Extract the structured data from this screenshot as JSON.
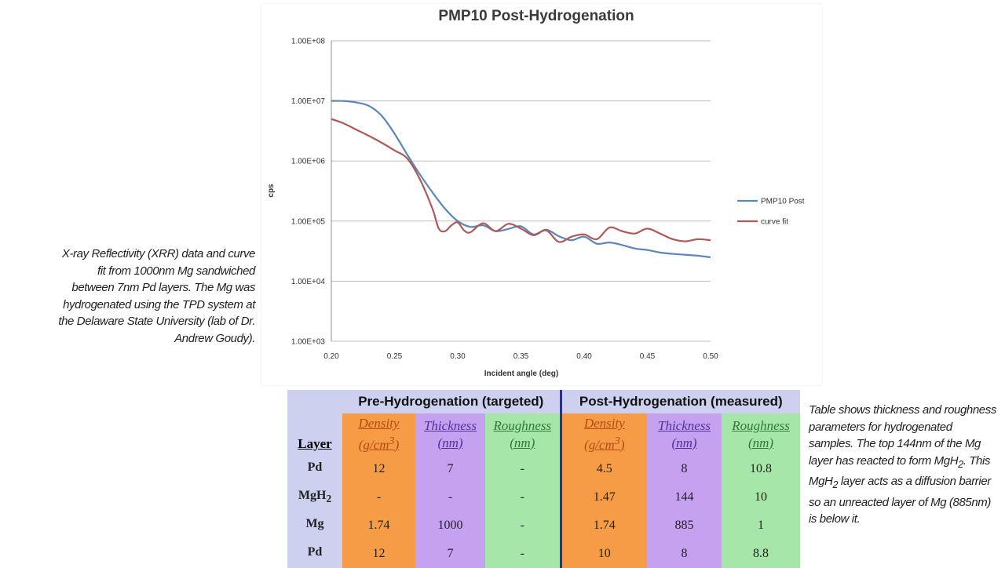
{
  "chart_data": {
    "type": "line",
    "title": "PMP10 Post-Hydrogenation",
    "xlabel": "Incident angle (deg)",
    "ylabel": "cps",
    "xlim": [
      0.2,
      0.5
    ],
    "ylim": [
      1000,
      100000000
    ],
    "yscale": "log",
    "xticks": [
      "0.20",
      "0.25",
      "0.30",
      "0.35",
      "0.40",
      "0.45",
      "0.50"
    ],
    "yticks": [
      "1.00E+08",
      "1.00E+07",
      "1.00E+06",
      "1.00E+05",
      "1.00E+04",
      "1.00E+03"
    ],
    "grid": "horizontal",
    "legend_position": "right",
    "series": [
      {
        "name": "PMP10 Post",
        "color": "#5b86b8",
        "x": [
          0.2,
          0.21,
          0.22,
          0.23,
          0.24,
          0.25,
          0.26,
          0.27,
          0.28,
          0.29,
          0.3,
          0.31,
          0.32,
          0.33,
          0.34,
          0.35,
          0.36,
          0.37,
          0.38,
          0.39,
          0.4,
          0.41,
          0.42,
          0.43,
          0.44,
          0.45,
          0.46,
          0.47,
          0.48,
          0.49,
          0.5
        ],
        "y": [
          10000000,
          9950000,
          9400000,
          8200000,
          5600000,
          2850000,
          1280000,
          600000,
          300000,
          160000,
          100000,
          80000,
          85000,
          68000,
          74000,
          82000,
          60000,
          72000,
          56000,
          48000,
          55000,
          42000,
          44000,
          40000,
          35000,
          33000,
          30000,
          28500,
          27500,
          26500,
          25000
        ]
      },
      {
        "name": "curve fit",
        "color": "#b05a57",
        "x": [
          0.2,
          0.21,
          0.22,
          0.23,
          0.24,
          0.25,
          0.26,
          0.27,
          0.28,
          0.285,
          0.29,
          0.295,
          0.3,
          0.305,
          0.31,
          0.32,
          0.33,
          0.34,
          0.35,
          0.36,
          0.37,
          0.38,
          0.39,
          0.4,
          0.41,
          0.42,
          0.43,
          0.44,
          0.45,
          0.46,
          0.47,
          0.48,
          0.49,
          0.5
        ],
        "y": [
          5000000,
          4200000,
          3300000,
          2600000,
          2000000,
          1500000,
          1100000,
          500000,
          160000,
          75000,
          68000,
          85000,
          95000,
          70000,
          65000,
          92000,
          68000,
          90000,
          75000,
          58000,
          70000,
          45000,
          55000,
          60000,
          50000,
          78000,
          68000,
          62000,
          75000,
          62000,
          50000,
          46000,
          50000,
          48000
        ]
      }
    ]
  },
  "captions": {
    "left": "X-ray Reflectivity (XRR) data and curve fit from 1000nm Mg sandwiched between 7nm Pd layers.  The Mg was hydrogenated using the TPD system at the Delaware State University (lab of Dr. Andrew Goudy).",
    "right": {
      "part1": "Table shows thickness and roughness parameters for hydrogenated samples.  The top 144nm of the Mg layer has reacted to form MgH",
      "sub1": "2",
      "part2": ".  This MgH",
      "sub2": "2",
      "part3": " layer acts as a diffusion barrier so an unreacted layer of Mg (885nm) is below it."
    }
  },
  "table": {
    "group_pre": "Pre-Hydrogenation (targeted)",
    "group_post": "Post-Hydrogenation (measured)",
    "layer_header": "Layer",
    "density_label": "Density",
    "density_unit_prefix": "(g/cm",
    "density_unit_sup": "3",
    "density_unit_suffix": ")",
    "thickness_label": "Thickness",
    "thickness_unit": "(nm)",
    "roughness_label": "Roughness",
    "roughness_unit": "(nm)",
    "rows": [
      {
        "layer": "Pd",
        "layer_sub": "",
        "pre_density": "12",
        "pre_thickness": "7",
        "pre_roughness": "-",
        "post_density": "4.5",
        "post_thickness": "8",
        "post_roughness": "10.8"
      },
      {
        "layer": "MgH",
        "layer_sub": "2",
        "pre_density": "-",
        "pre_thickness": "-",
        "pre_roughness": "-",
        "post_density": "1.47",
        "post_thickness": "144",
        "post_roughness": "10"
      },
      {
        "layer": "Mg",
        "layer_sub": "",
        "pre_density": "1.74",
        "pre_thickness": "1000",
        "pre_roughness": "-",
        "post_density": "1.74",
        "post_thickness": "885",
        "post_roughness": "1"
      },
      {
        "layer": "Pd",
        "layer_sub": "",
        "pre_density": "12",
        "pre_thickness": "7",
        "pre_roughness": "-",
        "post_density": "10",
        "post_thickness": "8",
        "post_roughness": "8.8"
      }
    ]
  }
}
